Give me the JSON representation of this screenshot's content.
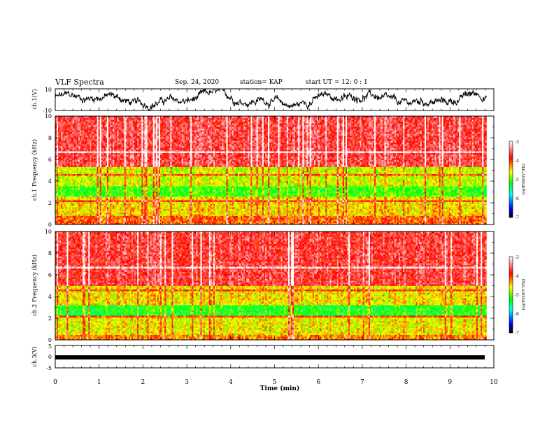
{
  "header": {
    "title": "VLF Spectra",
    "date": "Sep. 24, 2020",
    "station": "station= KAP",
    "start": "start  UT =   12: 0   : 1"
  },
  "colors": {
    "spectrum": [
      "#7a0088",
      "#0000ff",
      "#00ffff",
      "#00ff00",
      "#ffff00",
      "#ff0000",
      "#ffffff"
    ]
  },
  "chart_data": [
    {
      "type": "line",
      "name": "ch1-waveform",
      "ylabel": "ch.1(V)",
      "ylim": [
        -10,
        10
      ],
      "yticks": [
        "10",
        "-10"
      ],
      "xlim": [
        0,
        10
      ]
    },
    {
      "type": "heatmap",
      "name": "ch1-spectrogram",
      "ylabel": "ch.1 Frequency (kHz)",
      "ylim": [
        0,
        10
      ],
      "yticks": [
        "0",
        "2",
        "4",
        "6",
        "8",
        "10"
      ],
      "xlim": [
        0,
        9.83
      ],
      "colorbar": {
        "label": "log(PSD)(V²/Hz)",
        "range": [
          -7,
          -3
        ],
        "ticks": [
          "-3",
          "-4",
          "-5",
          "-6",
          "-7"
        ]
      }
    },
    {
      "type": "heatmap",
      "name": "ch2-spectrogram",
      "ylabel": "ch.2 Frequency (kHz)",
      "ylim": [
        0,
        10
      ],
      "yticks": [
        "0",
        "2",
        "4",
        "6",
        "8",
        "10"
      ],
      "xlim": [
        0,
        9.83
      ],
      "colorbar": {
        "label": "log(PSD)(V²/Hz)",
        "range": [
          -7,
          -3
        ],
        "ticks": [
          "-3",
          "-4",
          "-5",
          "-6",
          "-7"
        ]
      }
    },
    {
      "type": "line",
      "name": "ch3-waveform",
      "ylabel": "ch.3(V)",
      "ylim": [
        -5,
        5
      ],
      "yticks": [
        "5",
        "0",
        "-5"
      ],
      "xlim": [
        0,
        10
      ]
    }
  ],
  "xaxis": {
    "label": "Time  (min)",
    "ticks": [
      "0",
      "1",
      "2",
      "3",
      "4",
      "5",
      "6",
      "7",
      "8",
      "9",
      "10"
    ]
  }
}
